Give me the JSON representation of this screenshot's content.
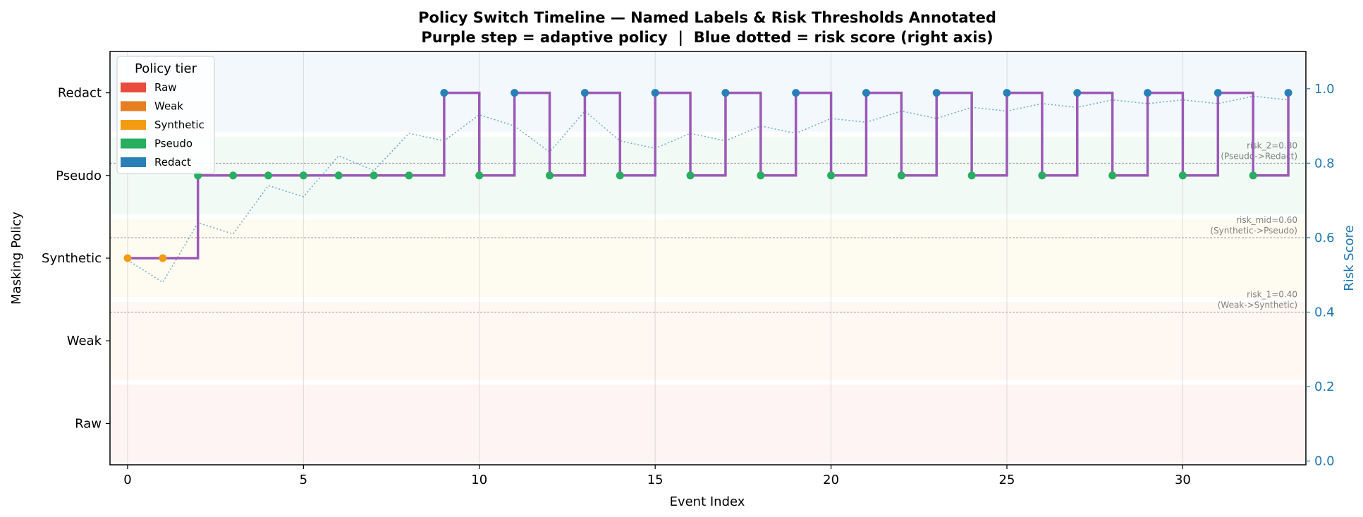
{
  "chart_data": {
    "type": "line",
    "title": "Policy Switch Timeline — Named Labels & Risk Thresholds Annotated",
    "subtitle": "Purple step = adaptive policy  |  Blue dotted = risk score (right axis)",
    "xlabel": "Event Index",
    "ylabel": "Masking Policy",
    "y2label": "Risk Score",
    "xlim": [
      -0.5,
      33.5
    ],
    "ylim": [
      -0.5,
      4.5
    ],
    "y2lim": [
      -0.01,
      1.1
    ],
    "x_ticks": [
      0,
      5,
      10,
      15,
      20,
      25,
      30
    ],
    "y_ticks": [
      "Raw",
      "Weak",
      "Synthetic",
      "Pseudo",
      "Redact"
    ],
    "y2_ticks": [
      "0.0",
      "0.2",
      "0.4",
      "0.6",
      "0.8",
      "1.0"
    ],
    "grid": "vertical",
    "legend": {
      "title": "Policy tier",
      "position": "top-left",
      "entries": [
        {
          "label": "Raw",
          "color": "#e74c3c"
        },
        {
          "label": "Weak",
          "color": "#e67e22"
        },
        {
          "label": "Synthetic",
          "color": "#f39c12"
        },
        {
          "label": "Pseudo",
          "color": "#27ae60"
        },
        {
          "label": "Redact",
          "color": "#2980b9"
        }
      ]
    },
    "bands": [
      {
        "tier": "Raw",
        "color": "#e74c3c"
      },
      {
        "tier": "Weak",
        "color": "#e67e22"
      },
      {
        "tier": "Synthetic",
        "color": "#f1c40f"
      },
      {
        "tier": "Pseudo",
        "color": "#27ae60"
      },
      {
        "tier": "Redact",
        "color": "#2980b9"
      }
    ],
    "thresholds": [
      {
        "value": 0.4,
        "line1": "risk_1=0.40",
        "line2": "(Weak->Synthetic)"
      },
      {
        "value": 0.6,
        "line1": "risk_mid=0.60",
        "line2": "(Synthetic->Pseudo)"
      },
      {
        "value": 0.8,
        "line1": "risk_2=0.80",
        "line2": "(Pseudo->Redact)"
      }
    ],
    "series": [
      {
        "kind": "step",
        "color": "#9b59b6",
        "x": [
          0,
          1,
          2,
          3,
          4,
          5,
          6,
          7,
          8,
          9,
          10,
          11,
          12,
          13,
          14,
          15,
          16,
          17,
          18,
          19,
          20,
          21,
          22,
          23,
          24,
          25,
          26,
          27,
          28,
          29,
          30,
          31,
          32,
          33
        ],
        "values": [
          2,
          2,
          3,
          3,
          3,
          3,
          3,
          3,
          3,
          4,
          3,
          4,
          3,
          4,
          3,
          4,
          3,
          4,
          3,
          4,
          3,
          4,
          3,
          4,
          3,
          4,
          3,
          4,
          3,
          4,
          3,
          4,
          3,
          4
        ]
      },
      {
        "kind": "dotted",
        "axis": "right",
        "color": "#1f77b4",
        "x": [
          0,
          1,
          2,
          3,
          4,
          5,
          6,
          7,
          8,
          9,
          10,
          11,
          12,
          13,
          14,
          15,
          16,
          17,
          18,
          19,
          20,
          21,
          22,
          23,
          24,
          25,
          26,
          27,
          28,
          29,
          30,
          31,
          32,
          33
        ],
        "values": [
          0.54,
          0.48,
          0.64,
          0.61,
          0.74,
          0.71,
          0.82,
          0.78,
          0.88,
          0.86,
          0.93,
          0.9,
          0.83,
          0.94,
          0.86,
          0.84,
          0.88,
          0.86,
          0.9,
          0.88,
          0.92,
          0.91,
          0.94,
          0.92,
          0.95,
          0.94,
          0.96,
          0.95,
          0.97,
          0.96,
          0.97,
          0.96,
          0.98,
          0.97
        ]
      }
    ]
  }
}
